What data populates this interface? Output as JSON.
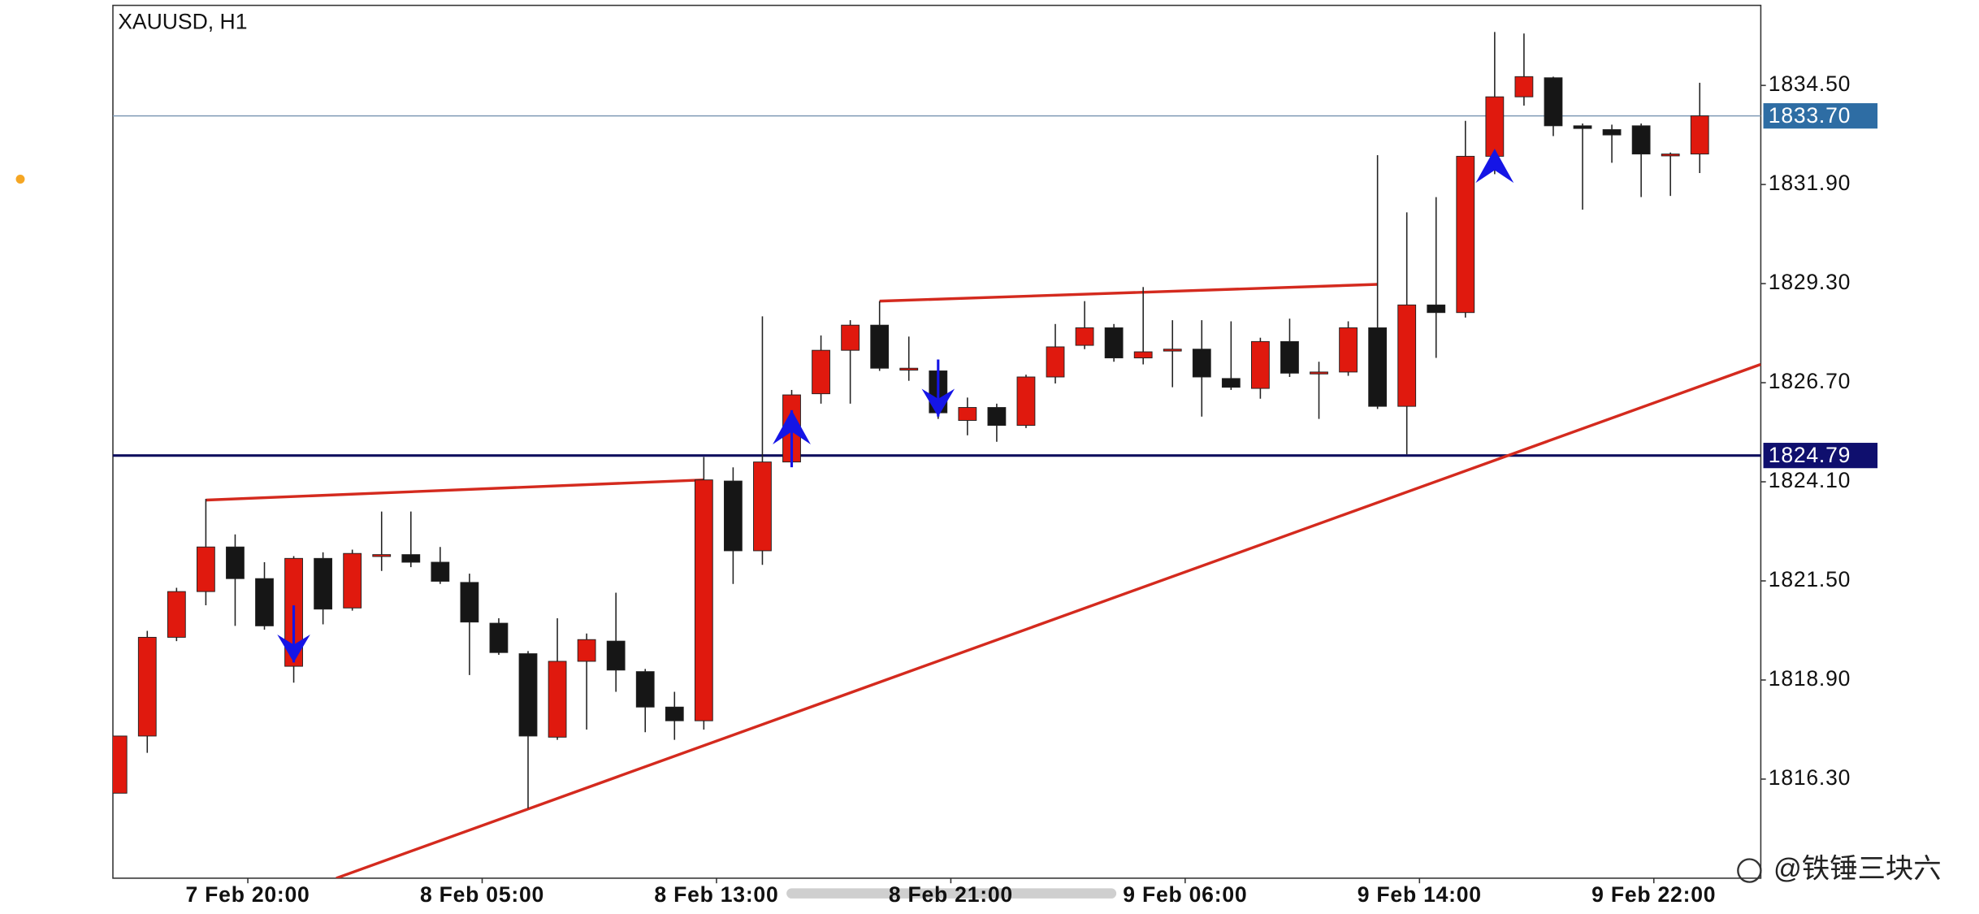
{
  "chart_data": {
    "type": "candlestick",
    "title": "XAUUSD, H1",
    "categories": [
      null,
      null,
      null,
      null,
      "7 Feb 20:00",
      null,
      null,
      null,
      null,
      null,
      null,
      null,
      "8 Feb 05:00",
      null,
      null,
      null,
      null,
      null,
      null,
      null,
      "8 Feb 13:00",
      null,
      null,
      null,
      null,
      null,
      null,
      null,
      "8 Feb 21:00",
      null,
      null,
      null,
      null,
      null,
      null,
      null,
      "9 Feb 06:00",
      null,
      null,
      null,
      null,
      null,
      null,
      null,
      "9 Feb 14:00",
      null,
      null,
      null,
      null,
      null,
      null,
      null,
      "9 Feb 22:00",
      null,
      null
    ],
    "open": [
      1815.93,
      1817.43,
      1820.02,
      1821.22,
      1822.39,
      1821.56,
      1819.26,
      1822.09,
      1820.79,
      1822.19,
      1822.19,
      1821.99,
      1821.46,
      1820.39,
      1819.59,
      1817.4,
      1819.39,
      1819.92,
      1819.12,
      1818.19,
      1817.83,
      1824.12,
      1822.29,
      1824.62,
      1826.41,
      1827.55,
      1828.21,
      1827.08,
      1827.01,
      1825.71,
      1826.05,
      1825.58,
      1826.85,
      1827.68,
      1828.14,
      1827.35,
      1827.58,
      1827.58,
      1826.81,
      1826.55,
      1827.78,
      1826.98,
      1826.98,
      1828.14,
      1826.08,
      1828.74,
      1828.54,
      1832.64,
      1834.2,
      1834.7,
      1833.44,
      1833.34,
      1833.44,
      1832.7,
      1832.7
    ],
    "high": [
      1817.43,
      1820.19,
      1821.32,
      1823.65,
      1822.72,
      1821.99,
      1822.15,
      1822.25,
      1822.32,
      1823.32,
      1823.32,
      1822.39,
      1821.69,
      1820.52,
      1819.66,
      1820.52,
      1820.12,
      1821.19,
      1819.19,
      1818.59,
      1824.75,
      1824.48,
      1828.44,
      1826.51,
      1827.94,
      1828.34,
      1828.84,
      1827.91,
      1827.08,
      1826.31,
      1826.15,
      1826.91,
      1828.24,
      1828.84,
      1828.24,
      1829.21,
      1828.34,
      1828.34,
      1828.31,
      1827.88,
      1828.38,
      1827.25,
      1828.31,
      1832.67,
      1831.17,
      1831.57,
      1833.57,
      1835.9,
      1835.86,
      1834.73,
      1833.5,
      1833.47,
      1833.5,
      1832.74,
      1834.57
    ],
    "low": [
      1815.93,
      1816.99,
      1819.92,
      1820.86,
      1820.32,
      1820.22,
      1818.83,
      1820.36,
      1820.72,
      1821.76,
      1821.86,
      1821.42,
      1819.03,
      1819.56,
      1815.53,
      1817.33,
      1817.6,
      1818.59,
      1817.53,
      1817.33,
      1817.6,
      1821.42,
      1821.92,
      1824.52,
      1826.15,
      1826.15,
      1827.01,
      1826.75,
      1825.75,
      1825.32,
      1825.15,
      1825.51,
      1826.68,
      1827.58,
      1827.25,
      1827.18,
      1826.58,
      1825.81,
      1826.51,
      1826.28,
      1826.85,
      1825.75,
      1826.88,
      1826.01,
      1824.82,
      1827.35,
      1828.41,
      1832.17,
      1833.97,
      1833.17,
      1831.24,
      1832.47,
      1831.57,
      1831.6,
      1832.2
    ],
    "close": [
      1817.43,
      1820.02,
      1821.22,
      1822.39,
      1821.56,
      1820.32,
      1822.09,
      1820.76,
      1822.22,
      1822.19,
      1821.99,
      1821.49,
      1820.42,
      1819.62,
      1817.43,
      1819.39,
      1819.96,
      1819.16,
      1818.19,
      1817.83,
      1824.15,
      1822.29,
      1824.62,
      1826.38,
      1827.55,
      1828.21,
      1827.08,
      1827.08,
      1825.91,
      1826.05,
      1825.58,
      1826.85,
      1827.64,
      1828.14,
      1827.35,
      1827.51,
      1827.58,
      1826.85,
      1826.58,
      1827.78,
      1826.95,
      1826.98,
      1828.14,
      1826.08,
      1828.74,
      1828.54,
      1832.64,
      1834.2,
      1834.73,
      1833.44,
      1833.37,
      1833.2,
      1832.7,
      1832.7,
      1833.7
    ],
    "up_color": "#e0190e",
    "down_color": "#161616",
    "ylim": [
      1813.7,
      1836.6
    ],
    "yticks": [
      {
        "value": 1834.5,
        "label": "1834.50"
      },
      {
        "value": 1831.9,
        "label": "1831.90"
      },
      {
        "value": 1829.3,
        "label": "1829.30"
      },
      {
        "value": 1826.7,
        "label": "1826.70"
      },
      {
        "value": 1824.1,
        "label": "1824.10"
      },
      {
        "value": 1821.5,
        "label": "1821.50"
      },
      {
        "value": 1818.9,
        "label": "1818.90"
      },
      {
        "value": 1816.3,
        "label": "1816.30"
      }
    ],
    "price_lines": [
      {
        "value": 1833.7,
        "label": "1833.70",
        "color": "#7f9ab5",
        "label_color": "#2e6da4"
      },
      {
        "value": 1824.79,
        "label": "1824.79",
        "color": "#0f0f5e",
        "label_color": "#0f0f6e"
      }
    ],
    "trendlines": [
      {
        "start": [
          3,
          1823.62
        ],
        "end": [
          20,
          1824.15
        ],
        "color": "#d42a1e"
      },
      {
        "start": [
          26,
          1828.84
        ],
        "end": [
          43,
          1829.28
        ],
        "color": "#d42a1e"
      },
      {
        "start": [
          7.45,
          1813.7
        ],
        "end": [
          56.08,
          1827.18
        ],
        "color": "#d42a1e"
      }
    ],
    "signals": [
      {
        "index": 6,
        "price": 1819.36,
        "direction": "down"
      },
      {
        "index": 23,
        "price": 1825.98,
        "direction": "up"
      },
      {
        "index": 28,
        "price": 1825.81,
        "direction": "down"
      },
      {
        "index": 47,
        "price": 1832.84,
        "direction": "up"
      }
    ],
    "signal_color": "#1515e6"
  },
  "watermark": "@铁锤三块六"
}
